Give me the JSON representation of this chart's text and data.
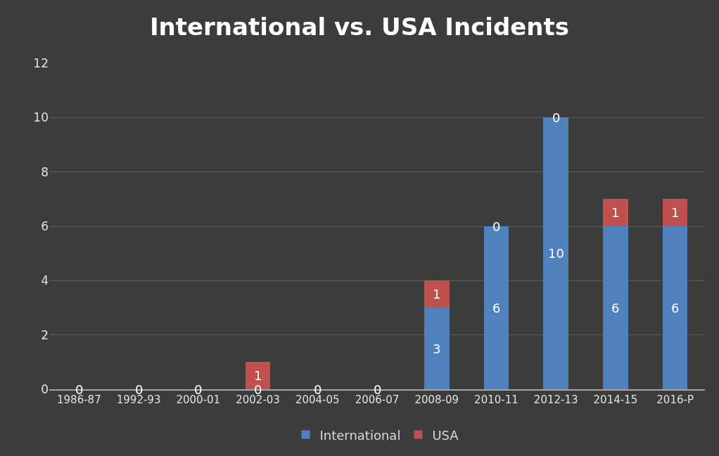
{
  "chart_data": {
    "type": "bar",
    "title": "International vs. USA Incidents",
    "categories": [
      "1986-87",
      "1992-93",
      "2000-01",
      "2002-03",
      "2004-05",
      "2006-07",
      "2008-09",
      "2010-11",
      "2012-13",
      "2014-15",
      "2016-P"
    ],
    "series": [
      {
        "name": "International",
        "color": "#4f81bd",
        "values": [
          0,
          0,
          0,
          0,
          0,
          0,
          3,
          6,
          10,
          6,
          6
        ],
        "value_labels": [
          "0",
          "0",
          "0",
          "0",
          "0",
          "0",
          "3",
          "6",
          "10",
          "6",
          "6"
        ]
      },
      {
        "name": "USA",
        "color": "#c0504d",
        "values": [
          0,
          0,
          0,
          1,
          0,
          0,
          1,
          0,
          0,
          1,
          1
        ],
        "value_labels": [
          null,
          null,
          null,
          "1",
          null,
          null,
          "1",
          "0",
          "0",
          "1",
          "1"
        ]
      }
    ],
    "stacked": true,
    "ylim": [
      0,
      12
    ],
    "yticks": [
      0,
      2,
      4,
      6,
      8,
      10,
      12
    ],
    "grid": "y",
    "legend": "bottom"
  }
}
